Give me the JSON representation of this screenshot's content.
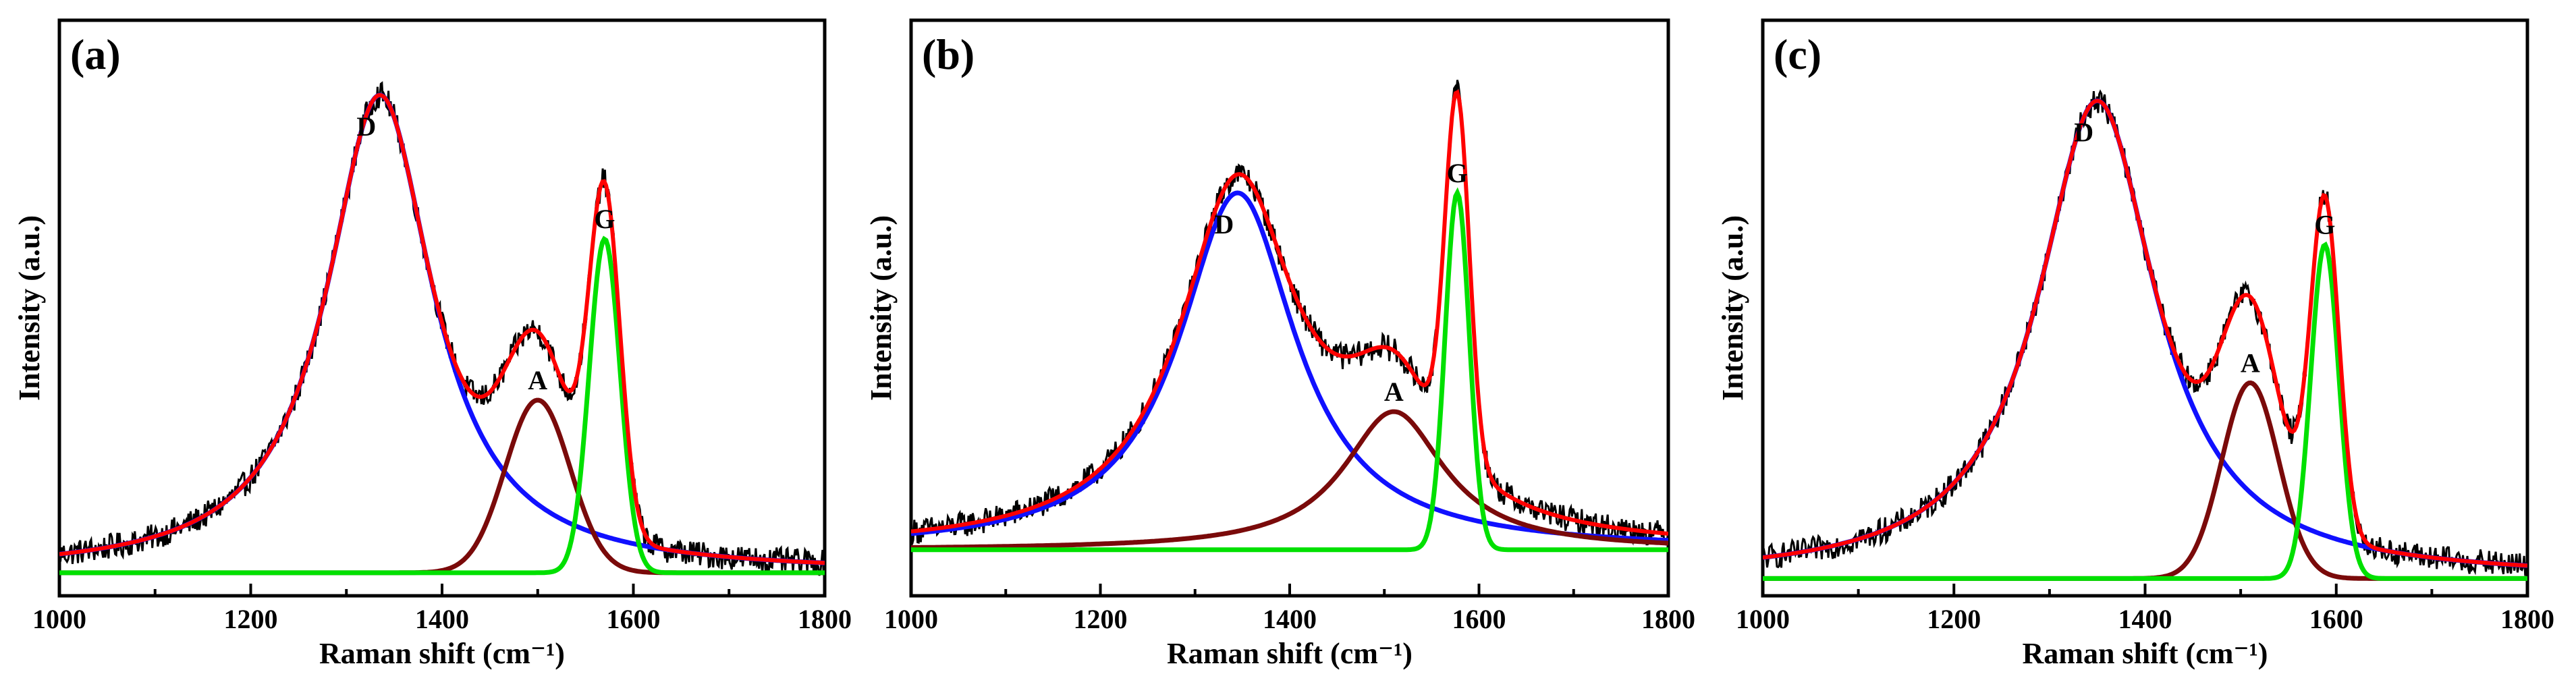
{
  "chart_data": [
    {
      "type": "line",
      "panel_label": "(a)",
      "xlabel": "Raman shift (cm⁻¹)",
      "ylabel": "Intensity (a.u.)",
      "xlim": [
        1000,
        1800
      ],
      "ylim": [
        0,
        1.0
      ],
      "xticks": [
        "1000",
        "1200",
        "1400",
        "1600",
        "1800"
      ],
      "grid": false,
      "baseline": 0.04,
      "peaks": [
        {
          "label": "D",
          "color": "#1010ff",
          "shape": "lorentzian",
          "center": 1335,
          "height": 0.83,
          "width": 135
        },
        {
          "label": "A",
          "color": "#7a0a0a",
          "shape": "gaussian",
          "center": 1500,
          "height": 0.3,
          "width": 80
        },
        {
          "label": "G",
          "color": "#00e000",
          "shape": "gaussian",
          "center": 1570,
          "height": 0.58,
          "width": 38
        }
      ],
      "fit_color": "#ff0000",
      "data_color": "#000000"
    },
    {
      "type": "line",
      "panel_label": "(b)",
      "xlabel": "Raman shift (cm⁻¹)",
      "ylabel": "Intensity (a.u.)",
      "xlim": [
        1000,
        1800
      ],
      "ylim": [
        0,
        1.0
      ],
      "xticks": [
        "1000",
        "1200",
        "1400",
        "1600",
        "1800"
      ],
      "grid": false,
      "baseline": 0.08,
      "peaks": [
        {
          "label": "D",
          "color": "#1010ff",
          "shape": "lorentzian",
          "center": 1345,
          "height": 0.62,
          "width": 150
        },
        {
          "label": "A",
          "color": "#7a0a0a",
          "shape": "lorentzian",
          "center": 1510,
          "height": 0.24,
          "width": 130
        },
        {
          "label": "G",
          "color": "#00e000",
          "shape": "gaussian",
          "center": 1577,
          "height": 0.62,
          "width": 30
        }
      ],
      "fit_color": "#ff0000",
      "data_color": "#000000"
    },
    {
      "type": "line",
      "panel_label": "(c)",
      "xlabel": "Raman shift (cm⁻¹)",
      "ylabel": "Intensity (a.u.)",
      "xlim": [
        1000,
        1800
      ],
      "ylim": [
        0,
        1.0
      ],
      "xticks": [
        "1000",
        "1200",
        "1400",
        "1600",
        "1800"
      ],
      "grid": false,
      "baseline": 0.03,
      "peaks": [
        {
          "label": "D",
          "color": "#1010ff",
          "shape": "lorentzian",
          "center": 1350,
          "height": 0.83,
          "width": 150
        },
        {
          "label": "A",
          "color": "#7a0a0a",
          "shape": "gaussian",
          "center": 1510,
          "height": 0.34,
          "width": 70
        },
        {
          "label": "G",
          "color": "#00e000",
          "shape": "gaussian",
          "center": 1588,
          "height": 0.58,
          "width": 35
        }
      ],
      "fit_color": "#ff0000",
      "data_color": "#000000"
    }
  ]
}
